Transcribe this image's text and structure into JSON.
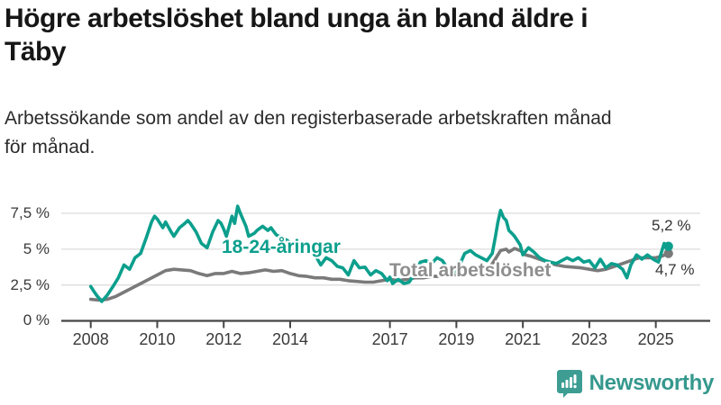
{
  "header": {
    "title": "Högre arbetslöshet bland unga än bland äldre i\nTäby",
    "subtitle": "Arbetssökande som andel av den registerbaserade arbetskraften månad\nför månad."
  },
  "chart_data": {
    "type": "line",
    "title": "Högre arbetslöshet bland unga än bland äldre i Täby",
    "subtitle": "Arbetssökande som andel av den registerbaserade arbetskraften månad för månad.",
    "unit": "%",
    "grid": "horizontal",
    "x_range": [
      2008,
      2025.5
    ],
    "y_range": [
      0,
      8.5
    ],
    "x_axis": {
      "ticks": [
        "2008",
        "2010",
        "2012",
        "2014",
        "2017",
        "2019",
        "2021",
        "2023",
        "2025"
      ],
      "tick_years": [
        2008,
        2010,
        2012,
        2014,
        2017,
        2019,
        2021,
        2023,
        2025
      ]
    },
    "y_axis": {
      "ticks": [
        {
          "value": 0,
          "label": "0 %"
        },
        {
          "value": 2.5,
          "label": "2,5 %"
        },
        {
          "value": 5,
          "label": "5 %"
        },
        {
          "value": 7.5,
          "label": "7,5 %"
        }
      ]
    },
    "series": [
      {
        "name": "Total arbetslöshet",
        "color": "#7a7a7a",
        "end_label": "4,7 %",
        "end_value": 4.7,
        "points": [
          [
            2008.0,
            1.5
          ],
          [
            2008.25,
            1.45
          ],
          [
            2008.5,
            1.5
          ],
          [
            2008.75,
            1.7
          ],
          [
            2009.0,
            2.0
          ],
          [
            2009.25,
            2.3
          ],
          [
            2009.5,
            2.6
          ],
          [
            2009.75,
            2.9
          ],
          [
            2010.0,
            3.2
          ],
          [
            2010.25,
            3.5
          ],
          [
            2010.5,
            3.6
          ],
          [
            2010.75,
            3.55
          ],
          [
            2011.0,
            3.5
          ],
          [
            2011.25,
            3.3
          ],
          [
            2011.5,
            3.15
          ],
          [
            2011.75,
            3.3
          ],
          [
            2012.0,
            3.3
          ],
          [
            2012.25,
            3.45
          ],
          [
            2012.5,
            3.3
          ],
          [
            2012.75,
            3.35
          ],
          [
            2013.0,
            3.45
          ],
          [
            2013.25,
            3.55
          ],
          [
            2013.5,
            3.45
          ],
          [
            2013.75,
            3.5
          ],
          [
            2014.0,
            3.3
          ],
          [
            2014.25,
            3.15
          ],
          [
            2014.5,
            3.1
          ],
          [
            2014.75,
            3.0
          ],
          [
            2015.0,
            3.0
          ],
          [
            2015.25,
            2.9
          ],
          [
            2015.5,
            2.9
          ],
          [
            2015.75,
            2.8
          ],
          [
            2016.0,
            2.75
          ],
          [
            2016.25,
            2.7
          ],
          [
            2016.5,
            2.7
          ],
          [
            2016.75,
            2.8
          ],
          [
            2017.0,
            2.9
          ],
          [
            2017.25,
            2.8
          ],
          [
            2017.5,
            2.9
          ],
          [
            2017.75,
            3.0
          ],
          [
            2018.0,
            3.0
          ],
          [
            2018.25,
            3.1
          ],
          [
            2018.5,
            3.1
          ],
          [
            2018.75,
            3.2
          ],
          [
            2019.0,
            3.2
          ],
          [
            2019.25,
            3.3
          ],
          [
            2019.5,
            3.4
          ],
          [
            2019.75,
            3.5
          ],
          [
            2020.0,
            3.7
          ],
          [
            2020.17,
            4.3
          ],
          [
            2020.33,
            4.9
          ],
          [
            2020.5,
            5.0
          ],
          [
            2020.58,
            4.8
          ],
          [
            2020.75,
            5.05
          ],
          [
            2020.92,
            4.9
          ],
          [
            2021.08,
            4.6
          ],
          [
            2021.25,
            4.5
          ],
          [
            2021.5,
            4.3
          ],
          [
            2021.75,
            4.1
          ],
          [
            2022.0,
            3.9
          ],
          [
            2022.25,
            3.8
          ],
          [
            2022.5,
            3.75
          ],
          [
            2022.75,
            3.7
          ],
          [
            2023.0,
            3.6
          ],
          [
            2023.25,
            3.5
          ],
          [
            2023.5,
            3.6
          ],
          [
            2023.75,
            3.8
          ],
          [
            2024.0,
            4.0
          ],
          [
            2024.25,
            4.2
          ],
          [
            2024.5,
            4.4
          ],
          [
            2024.75,
            4.4
          ],
          [
            2025.0,
            4.4
          ],
          [
            2025.17,
            4.5
          ],
          [
            2025.38,
            4.7
          ]
        ]
      },
      {
        "name": "18-24-åringar",
        "color": "#0c9f8d",
        "end_label": "5,2 %",
        "end_value": 5.2,
        "points": [
          [
            2008.0,
            2.4
          ],
          [
            2008.08,
            2.1
          ],
          [
            2008.17,
            1.8
          ],
          [
            2008.33,
            1.35
          ],
          [
            2008.5,
            1.8
          ],
          [
            2008.67,
            2.4
          ],
          [
            2008.83,
            3.0
          ],
          [
            2009.0,
            3.9
          ],
          [
            2009.17,
            3.6
          ],
          [
            2009.33,
            4.4
          ],
          [
            2009.5,
            4.7
          ],
          [
            2009.67,
            5.8
          ],
          [
            2009.83,
            6.9
          ],
          [
            2009.92,
            7.3
          ],
          [
            2010.0,
            7.1
          ],
          [
            2010.17,
            6.5
          ],
          [
            2010.25,
            6.9
          ],
          [
            2010.42,
            6.2
          ],
          [
            2010.5,
            5.9
          ],
          [
            2010.67,
            6.5
          ],
          [
            2010.83,
            6.8
          ],
          [
            2010.92,
            7.0
          ],
          [
            2011.0,
            6.8
          ],
          [
            2011.17,
            6.2
          ],
          [
            2011.33,
            5.4
          ],
          [
            2011.5,
            5.1
          ],
          [
            2011.67,
            6.2
          ],
          [
            2011.83,
            7.0
          ],
          [
            2011.92,
            6.8
          ],
          [
            2012.0,
            6.4
          ],
          [
            2012.08,
            5.9
          ],
          [
            2012.25,
            7.3
          ],
          [
            2012.33,
            6.8
          ],
          [
            2012.42,
            8.0
          ],
          [
            2012.5,
            7.5
          ],
          [
            2012.67,
            6.6
          ],
          [
            2012.75,
            5.9
          ],
          [
            2012.92,
            6.1
          ],
          [
            2013.0,
            6.3
          ],
          [
            2013.17,
            6.6
          ],
          [
            2013.33,
            6.3
          ],
          [
            2013.42,
            6.5
          ],
          [
            2013.58,
            6.0
          ],
          [
            2013.75,
            5.8
          ],
          [
            2013.92,
            5.6
          ],
          [
            2014.0,
            5.4
          ],
          [
            2014.25,
            5.1
          ],
          [
            2014.5,
            4.9
          ],
          [
            2014.75,
            4.6
          ],
          [
            2014.92,
            3.9
          ],
          [
            2015.08,
            4.4
          ],
          [
            2015.25,
            4.2
          ],
          [
            2015.42,
            3.8
          ],
          [
            2015.58,
            3.7
          ],
          [
            2015.75,
            3.2
          ],
          [
            2015.92,
            4.2
          ],
          [
            2016.08,
            3.7
          ],
          [
            2016.25,
            3.75
          ],
          [
            2016.42,
            3.2
          ],
          [
            2016.58,
            3.5
          ],
          [
            2016.75,
            3.3
          ],
          [
            2016.92,
            2.8
          ],
          [
            2017.0,
            3.05
          ],
          [
            2017.08,
            2.6
          ],
          [
            2017.25,
            2.9
          ],
          [
            2017.42,
            2.6
          ],
          [
            2017.58,
            2.7
          ],
          [
            2017.75,
            3.3
          ],
          [
            2017.92,
            4.1
          ],
          [
            2018.08,
            4.2
          ],
          [
            2018.25,
            4.0
          ],
          [
            2018.42,
            4.4
          ],
          [
            2018.58,
            4.2
          ],
          [
            2018.75,
            3.6
          ],
          [
            2018.92,
            3.4
          ],
          [
            2019.08,
            3.8
          ],
          [
            2019.25,
            4.7
          ],
          [
            2019.42,
            4.9
          ],
          [
            2019.58,
            4.6
          ],
          [
            2019.75,
            4.4
          ],
          [
            2019.92,
            4.2
          ],
          [
            2020.08,
            4.7
          ],
          [
            2020.17,
            5.8
          ],
          [
            2020.25,
            6.9
          ],
          [
            2020.33,
            7.7
          ],
          [
            2020.42,
            7.2
          ],
          [
            2020.5,
            7.0
          ],
          [
            2020.58,
            6.3
          ],
          [
            2020.67,
            6.1
          ],
          [
            2020.75,
            5.9
          ],
          [
            2020.92,
            5.3
          ],
          [
            2021.0,
            4.6
          ],
          [
            2021.17,
            5.1
          ],
          [
            2021.33,
            4.8
          ],
          [
            2021.5,
            4.4
          ],
          [
            2021.67,
            4.2
          ],
          [
            2021.83,
            4.1
          ],
          [
            2022.0,
            4.0
          ],
          [
            2022.17,
            4.2
          ],
          [
            2022.33,
            4.4
          ],
          [
            2022.5,
            4.2
          ],
          [
            2022.67,
            4.4
          ],
          [
            2022.83,
            4.1
          ],
          [
            2023.0,
            4.2
          ],
          [
            2023.17,
            3.7
          ],
          [
            2023.33,
            4.3
          ],
          [
            2023.5,
            3.7
          ],
          [
            2023.67,
            4.0
          ],
          [
            2023.83,
            3.9
          ],
          [
            2024.0,
            3.6
          ],
          [
            2024.13,
            3.0
          ],
          [
            2024.25,
            3.9
          ],
          [
            2024.42,
            4.6
          ],
          [
            2024.58,
            4.3
          ],
          [
            2024.75,
            4.6
          ],
          [
            2024.92,
            4.3
          ],
          [
            2025.08,
            4.1
          ],
          [
            2025.25,
            5.4
          ],
          [
            2025.38,
            5.2
          ]
        ]
      }
    ],
    "colors": {
      "youth_line": "#0c9f8d",
      "total_line": "#7a7a7a",
      "gridline": "#dcdcdc",
      "axis": "#454545",
      "brand_teal": "#35988d"
    }
  },
  "footer": {
    "brand": "Newsworthy"
  }
}
